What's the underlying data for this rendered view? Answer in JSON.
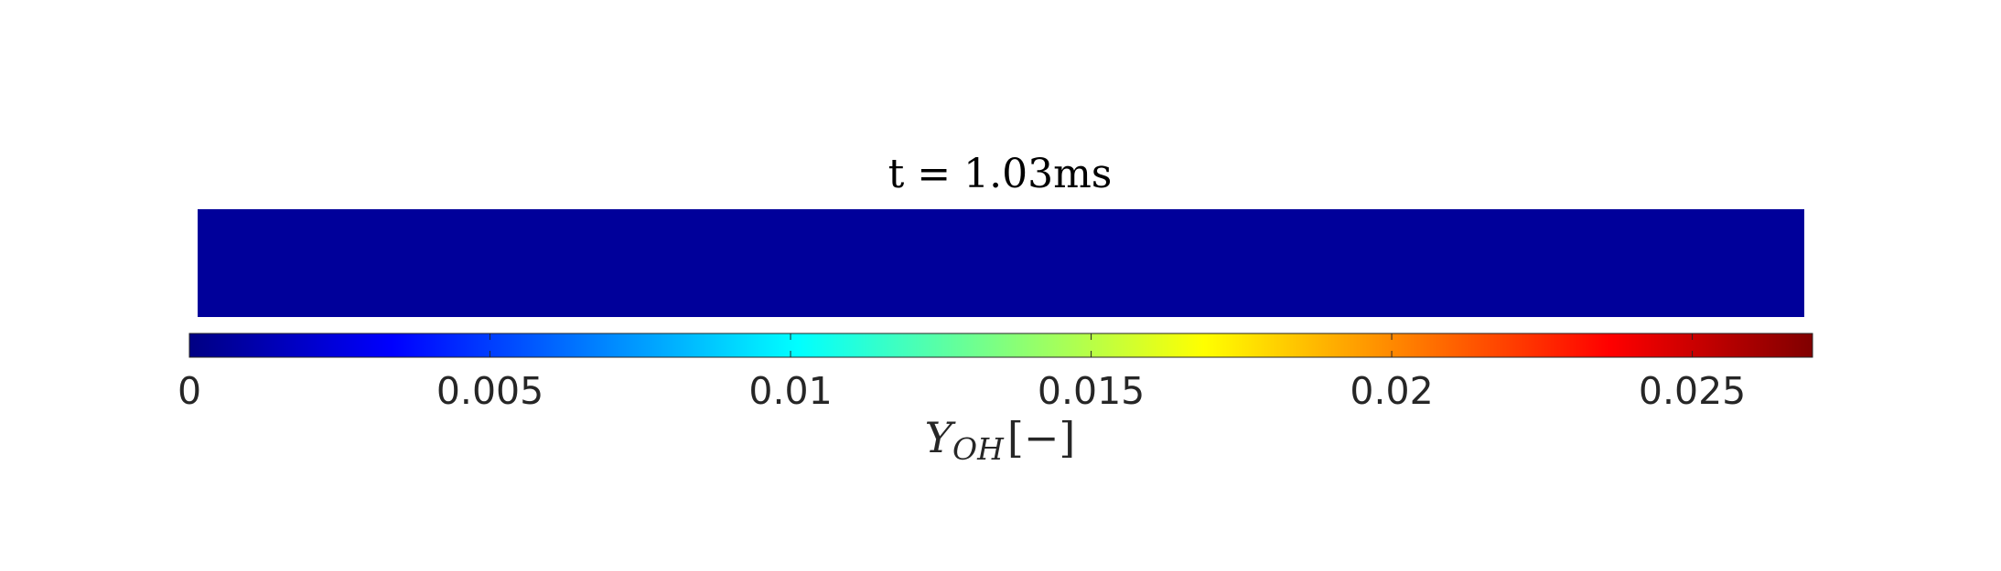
{
  "chart_data": {
    "type": "heatmap",
    "title": "t = 1.03ms",
    "field_value": 0,
    "colormap": "jet",
    "colorbar": {
      "position": "bottom",
      "clim": [
        0,
        0.027
      ],
      "ticks": [
        0,
        0.005,
        0.01,
        0.015,
        0.02,
        0.025
      ],
      "tick_labels": [
        "0",
        "0.005",
        "0.01",
        "0.015",
        "0.02",
        "0.025"
      ],
      "label_main": "Y",
      "label_sub": "OH",
      "label_unit": "[−]"
    },
    "colors": {
      "field": "#00009a",
      "colorbar_stops": [
        "#000083",
        "#0000ff",
        "#00ffff",
        "#ffff00",
        "#ff0000",
        "#800000"
      ]
    }
  }
}
